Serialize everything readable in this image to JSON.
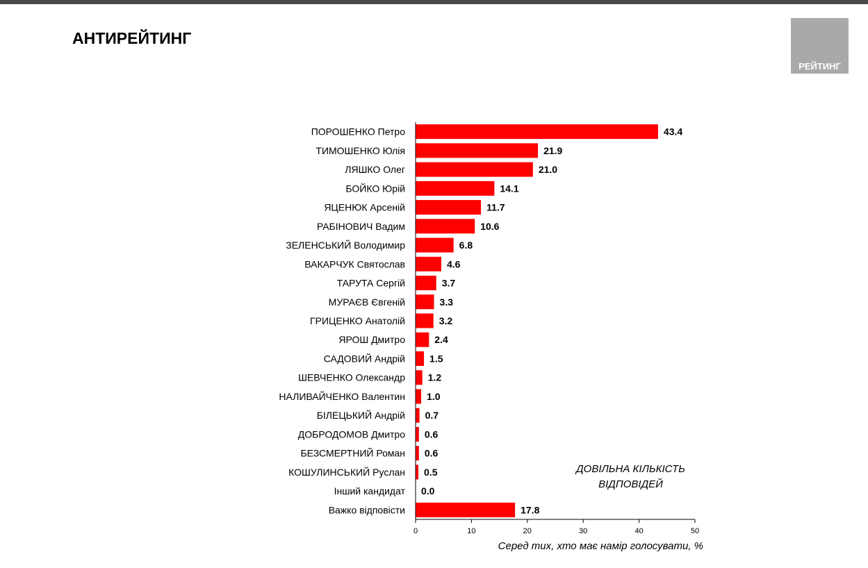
{
  "slide": {
    "title": "АНТИРЕЙТИНГ",
    "logo_text": "РЕЙТИНГ"
  },
  "colors": {
    "bar": "#ff0000",
    "top_bar": "#4a4a4a",
    "logo_bg": "#a9a9a9"
  },
  "chart_data": {
    "type": "bar",
    "orientation": "horizontal",
    "categories": [
      "ПОРОШЕНКО Петро",
      "ТИМОШЕНКО Юлія",
      "ЛЯШКО Олег",
      "БОЙКО Юрій",
      "ЯЦЕНЮК Арсеній",
      "РАБІНОВИЧ Вадим",
      "ЗЕЛЕНСЬКИЙ Володимир",
      "ВАКАРЧУК Святослав",
      "ТАРУТА Сергій",
      "МУРАЄВ Євгеній",
      "ГРИЦЕНКО Анатолій",
      "ЯРОШ Дмитро",
      "САДОВИЙ Андрій",
      "ШЕВЧЕНКО Олександр",
      "НАЛИВАЙЧЕНКО Валентин",
      "БІЛЕЦЬКИЙ Андрій",
      "ДОБРОДОМОВ Дмитро",
      "БЕЗСМЕРТНИЙ Роман",
      "КОШУЛИНСЬКИЙ Руслан",
      "Інший кандидат",
      "Важко відповісти"
    ],
    "values": [
      43.4,
      21.9,
      21.0,
      14.1,
      11.7,
      10.6,
      6.8,
      4.6,
      3.7,
      3.3,
      3.2,
      2.4,
      1.5,
      1.2,
      1.0,
      0.7,
      0.6,
      0.6,
      0.5,
      0.0,
      17.8
    ],
    "value_labels": [
      "43.4",
      "21.9",
      "21.0",
      "14.1",
      "11.7",
      "10.6",
      "6.8",
      "4.6",
      "3.7",
      "3.3",
      "3.2",
      "2.4",
      "1.5",
      "1.2",
      "1.0",
      "0.7",
      "0.6",
      "0.6",
      "0.5",
      "0.0",
      "17.8"
    ],
    "xlim": [
      0,
      50
    ],
    "xticks": [
      0,
      10,
      20,
      30,
      40,
      50
    ],
    "xlabel": "Серед тих, хто має намір голосувати, %",
    "annotation": "ДОВІЛЬНА КІЛЬКІСТЬ ВІДПОВІДЕЙ",
    "grid": false,
    "legend": "none"
  }
}
